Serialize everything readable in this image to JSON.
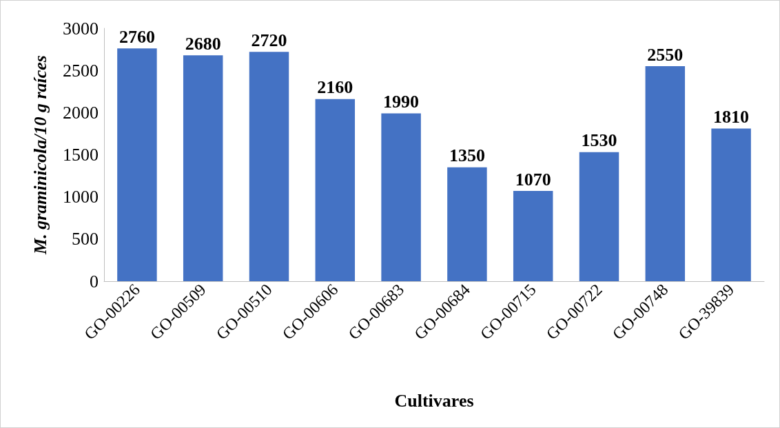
{
  "chart_data": {
    "type": "bar",
    "xlabel": "Cultivares",
    "ylabel": "M. graminicola/10 g raíces",
    "categories": [
      "GO-00226",
      "GO-00509",
      "GO-00510",
      "GO-00606",
      "GO-00683",
      "GO-00684",
      "GO-00715",
      "GO-00722",
      "GO-00748",
      "GO-39839"
    ],
    "values": [
      2760,
      2680,
      2720,
      2160,
      1990,
      1350,
      1070,
      1530,
      2550,
      1810
    ],
    "color": "#4472c4",
    "ylim": [
      0,
      3000
    ],
    "yticks": [
      0,
      500,
      1000,
      1500,
      2000,
      2500,
      3000
    ],
    "grid": false,
    "data_labels": true
  }
}
